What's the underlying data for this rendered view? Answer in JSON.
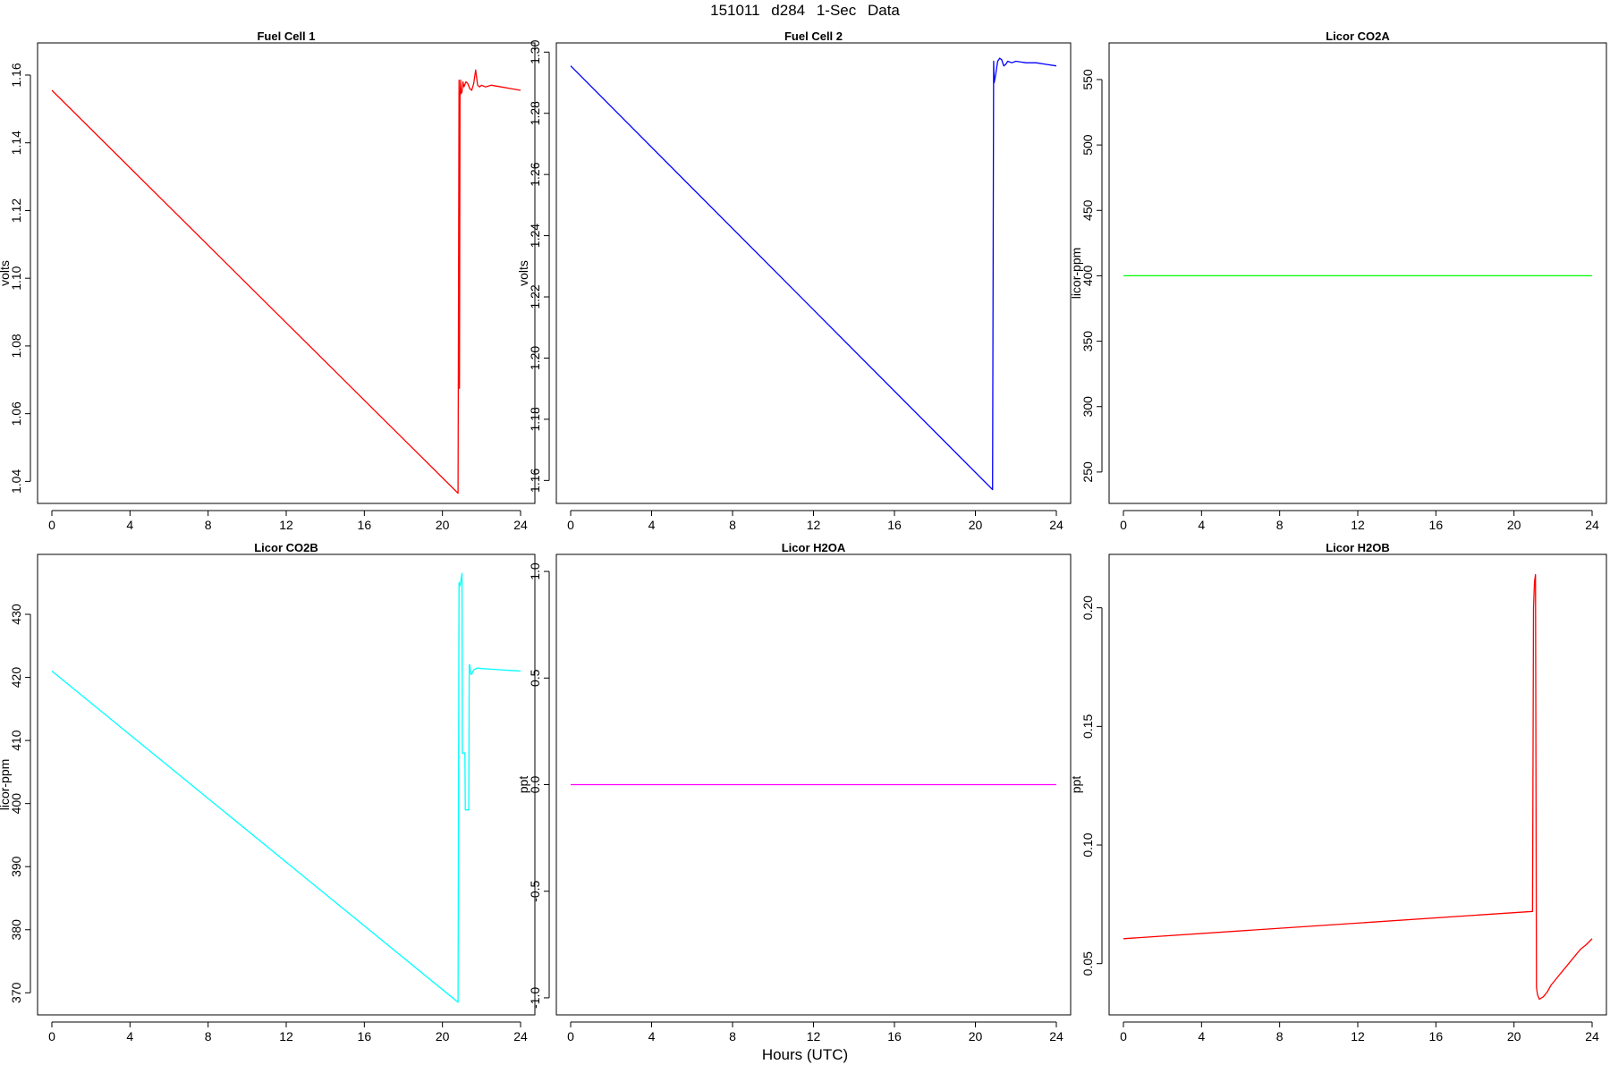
{
  "title": "151011    d284    1-Sec Data",
  "x_axis_label": "Hours (UTC)",
  "chart_data": [
    {
      "type": "line",
      "title": "Fuel Cell 1",
      "ylabel": "volts",
      "color": "#ff0000",
      "xlim": [
        0,
        24
      ],
      "ylim": [
        1.0335,
        1.1695
      ],
      "xticks": [
        0,
        4,
        8,
        12,
        16,
        20,
        24
      ],
      "yticks": [
        1.04,
        1.06,
        1.08,
        1.1,
        1.12,
        1.14,
        1.16
      ],
      "ytick_labels": [
        "1.04",
        "1.06",
        "1.08",
        "1.10",
        "1.12",
        "1.14",
        "1.16"
      ],
      "series": [
        {
          "x": [
            0,
            20.8,
            20.85,
            20.87,
            20.9,
            20.93,
            20.95,
            21.0,
            21.05,
            21.1,
            21.2,
            21.3,
            21.4,
            21.5,
            21.6,
            21.7,
            21.8,
            21.9,
            22.0,
            22.2,
            22.5,
            23.0,
            23.5,
            24.0
          ],
          "y": [
            1.1555,
            1.0365,
            1.1585,
            1.0675,
            1.1535,
            1.1585,
            1.1545,
            1.155,
            1.158,
            1.1565,
            1.158,
            1.1575,
            1.156,
            1.1555,
            1.1575,
            1.1615,
            1.157,
            1.1565,
            1.157,
            1.1565,
            1.157,
            1.1565,
            1.156,
            1.1555
          ]
        }
      ]
    },
    {
      "type": "line",
      "title": "Fuel Cell 2",
      "ylabel": "volts",
      "color": "#0000ff",
      "xlim": [
        0,
        24
      ],
      "ylim": [
        1.1525,
        1.303
      ],
      "xticks": [
        0,
        4,
        8,
        12,
        16,
        20,
        24
      ],
      "yticks": [
        1.16,
        1.18,
        1.2,
        1.22,
        1.24,
        1.26,
        1.28,
        1.3
      ],
      "ytick_labels": [
        "1.16",
        "1.18",
        "1.20",
        "1.22",
        "1.24",
        "1.26",
        "1.28",
        "1.30"
      ],
      "series": [
        {
          "x": [
            0,
            20.85,
            20.9,
            20.93,
            21.0,
            21.1,
            21.2,
            21.3,
            21.4,
            21.5,
            21.6,
            21.8,
            22.0,
            22.5,
            23.0,
            23.5,
            24.0
          ],
          "y": [
            1.2955,
            1.157,
            1.297,
            1.29,
            1.2925,
            1.297,
            1.298,
            1.2975,
            1.2955,
            1.296,
            1.297,
            1.2965,
            1.297,
            1.2965,
            1.2965,
            1.296,
            1.2955
          ]
        }
      ]
    },
    {
      "type": "line",
      "title": "Licor CO2A",
      "ylabel": "licor-ppm",
      "color": "#00ff00",
      "xlim": [
        0,
        24
      ],
      "ylim": [
        226,
        578
      ],
      "xticks": [
        0,
        4,
        8,
        12,
        16,
        20,
        24
      ],
      "yticks": [
        250,
        300,
        350,
        400,
        450,
        500,
        550
      ],
      "ytick_labels": [
        "250",
        "300",
        "350",
        "400",
        "450",
        "500",
        "550"
      ],
      "series": [
        {
          "x": [
            0,
            24
          ],
          "y": [
            400,
            400
          ]
        }
      ]
    },
    {
      "type": "line",
      "title": "Licor CO2B",
      "ylabel": "licor-ppm",
      "color": "#00ffff",
      "xlim": [
        0,
        24
      ],
      "ylim": [
        366.5,
        439.5
      ],
      "xticks": [
        0,
        4,
        8,
        12,
        16,
        20,
        24
      ],
      "yticks": [
        370,
        380,
        390,
        400,
        410,
        420,
        430
      ],
      "ytick_labels": [
        "370",
        "380",
        "390",
        "400",
        "410",
        "420",
        "430"
      ],
      "series": [
        {
          "x": [
            0,
            20.8,
            20.85,
            20.9,
            20.95,
            21.0,
            21.02,
            21.15,
            21.17,
            21.35,
            21.37,
            21.4,
            21.45,
            21.5,
            21.6,
            21.8,
            22.0,
            22.5,
            23.0,
            23.5,
            24.0
          ],
          "y": [
            421,
            368.5,
            435,
            434.5,
            435.5,
            436.5,
            408,
            408,
            399,
            399,
            422,
            422,
            420.5,
            420.5,
            421.2,
            421.5,
            421.4,
            421.3,
            421.2,
            421.1,
            421
          ]
        }
      ]
    },
    {
      "type": "line",
      "title": "Licor H2OA",
      "ylabel": "ppt",
      "color": "#ff00ff",
      "xlim": [
        0,
        24
      ],
      "ylim": [
        -1.08,
        1.08
      ],
      "xticks": [
        0,
        4,
        8,
        12,
        16,
        20,
        24
      ],
      "yticks": [
        -1.0,
        -0.5,
        0.0,
        0.5,
        1.0
      ],
      "ytick_labels": [
        "-1.0",
        "-0.5",
        "0.0",
        "0.5",
        "1.0"
      ],
      "series": [
        {
          "x": [
            0,
            24
          ],
          "y": [
            0,
            0
          ]
        }
      ]
    },
    {
      "type": "line",
      "title": "Licor H2OB",
      "ylabel": "ppt",
      "color": "#ff0000",
      "xlim": [
        0,
        24
      ],
      "ylim": [
        0.0284,
        0.2225
      ],
      "xticks": [
        0,
        4,
        8,
        12,
        16,
        20,
        24
      ],
      "yticks": [
        0.05,
        0.1,
        0.15,
        0.2
      ],
      "ytick_labels": [
        "0.05",
        "0.10",
        "0.15",
        "0.20"
      ],
      "series": [
        {
          "x": [
            0,
            20.95,
            21.0,
            21.05,
            21.1,
            21.15,
            21.2,
            21.3,
            21.5,
            21.7,
            21.9,
            22.2,
            22.5,
            22.8,
            23.1,
            23.4,
            23.7,
            24.0
          ],
          "y": [
            0.0605,
            0.072,
            0.2,
            0.211,
            0.214,
            0.04,
            0.037,
            0.035,
            0.036,
            0.038,
            0.041,
            0.044,
            0.047,
            0.05,
            0.053,
            0.056,
            0.058,
            0.0605
          ]
        }
      ]
    }
  ]
}
